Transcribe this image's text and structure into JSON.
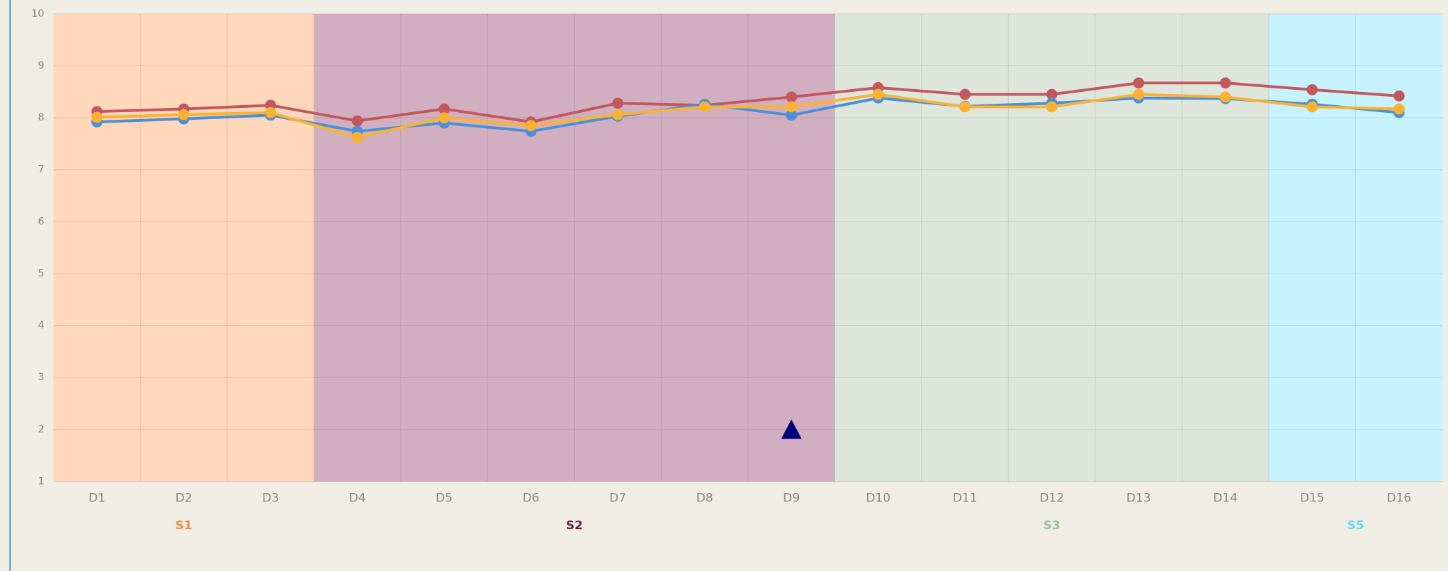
{
  "chart_data": {
    "type": "line",
    "categories": [
      "D1",
      "D2",
      "D3",
      "D4",
      "D5",
      "D6",
      "D7",
      "D8",
      "D9",
      "D10",
      "D11",
      "D12",
      "D13",
      "D14",
      "D15",
      "D16"
    ],
    "series": [
      {
        "color": "#c1585d",
        "values": [
          8.12,
          8.17,
          8.24,
          7.94,
          8.17,
          7.92,
          8.28,
          8.24,
          8.4,
          8.58,
          8.45,
          8.45,
          8.67,
          8.67,
          8.54,
          8.42
        ]
      },
      {
        "color": "#4a90d9",
        "values": [
          7.92,
          7.98,
          8.05,
          7.74,
          7.9,
          7.74,
          8.03,
          8.26,
          8.05,
          8.38,
          8.22,
          8.28,
          8.38,
          8.37,
          8.26,
          8.1
        ]
      },
      {
        "color": "#f9b233",
        "values": [
          8.01,
          8.06,
          8.1,
          7.62,
          8.0,
          7.85,
          8.06,
          8.21,
          8.21,
          8.45,
          8.21,
          8.21,
          8.45,
          8.4,
          8.21,
          8.17
        ]
      },
      {
        "color": "#00007a",
        "marker": "triangle",
        "values": [
          null,
          null,
          null,
          null,
          null,
          null,
          null,
          null,
          2,
          null,
          null,
          null,
          null,
          null,
          null,
          null
        ]
      }
    ],
    "regions": [
      {
        "label": "S1",
        "start": 0,
        "end": 2,
        "color": "#ffd7ba",
        "label_color": "#f5883a"
      },
      {
        "label": "S2",
        "start": 3,
        "end": 8,
        "color": "#d1afc0",
        "label_color": "#6b1d4a"
      },
      {
        "label": "S3",
        "start": 9,
        "end": 13,
        "color": "#dee6dc",
        "label_color": "#8fc49a"
      },
      {
        "label": "S5",
        "start": 14,
        "end": 15,
        "color": "#c6f3fd",
        "label_color": "#5fdcf5"
      }
    ],
    "ylim": [
      1,
      10
    ],
    "yticks": [
      1,
      2,
      3,
      4,
      5,
      6,
      7,
      8,
      9,
      10
    ],
    "grid": true
  }
}
